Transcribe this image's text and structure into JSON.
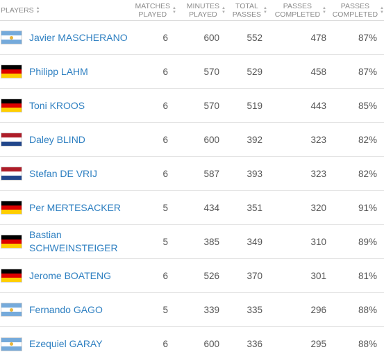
{
  "header": {
    "players": "PLAYERS",
    "matches_played": [
      "MATCHES",
      "PLAYED"
    ],
    "minutes_played": [
      "MINUTES",
      "PLAYED"
    ],
    "total_passes": [
      "TOTAL",
      "PASSES"
    ],
    "passes_completed": [
      "PASSES",
      "COMPLETED"
    ],
    "passes_completed_pct": [
      "PASSES",
      "COMPLETED"
    ]
  },
  "flags": {
    "ARG": [
      "#75aadb",
      "#ffffff",
      "#75aadb"
    ],
    "GER": [
      "#000000",
      "#dd0000",
      "#ffce00"
    ],
    "NED": [
      "#ae1c28",
      "#ffffff",
      "#21468b"
    ]
  },
  "rows": [
    {
      "country": "ARG",
      "name": [
        "Javier MASCHERANO"
      ],
      "matches": "6",
      "minutes": "600",
      "total": "552",
      "completed": "478",
      "pct": "87%"
    },
    {
      "country": "GER",
      "name": [
        "Philipp LAHM"
      ],
      "matches": "6",
      "minutes": "570",
      "total": "529",
      "completed": "458",
      "pct": "87%"
    },
    {
      "country": "GER",
      "name": [
        "Toni KROOS"
      ],
      "matches": "6",
      "minutes": "570",
      "total": "519",
      "completed": "443",
      "pct": "85%"
    },
    {
      "country": "NED",
      "name": [
        "Daley BLIND"
      ],
      "matches": "6",
      "minutes": "600",
      "total": "392",
      "completed": "323",
      "pct": "82%"
    },
    {
      "country": "NED",
      "name": [
        "Stefan DE VRIJ"
      ],
      "matches": "6",
      "minutes": "587",
      "total": "393",
      "completed": "323",
      "pct": "82%"
    },
    {
      "country": "GER",
      "name": [
        "Per MERTESACKER"
      ],
      "matches": "5",
      "minutes": "434",
      "total": "351",
      "completed": "320",
      "pct": "91%"
    },
    {
      "country": "GER",
      "name": [
        "Bastian",
        "SCHWEINSTEIGER"
      ],
      "matches": "5",
      "minutes": "385",
      "total": "349",
      "completed": "310",
      "pct": "89%"
    },
    {
      "country": "GER",
      "name": [
        "Jerome BOATENG"
      ],
      "matches": "6",
      "minutes": "526",
      "total": "370",
      "completed": "301",
      "pct": "81%"
    },
    {
      "country": "ARG",
      "name": [
        "Fernando GAGO"
      ],
      "matches": "5",
      "minutes": "339",
      "total": "335",
      "completed": "296",
      "pct": "88%"
    },
    {
      "country": "ARG",
      "name": [
        "Ezequiel GARAY"
      ],
      "matches": "6",
      "minutes": "600",
      "total": "336",
      "completed": "295",
      "pct": "88%"
    }
  ]
}
